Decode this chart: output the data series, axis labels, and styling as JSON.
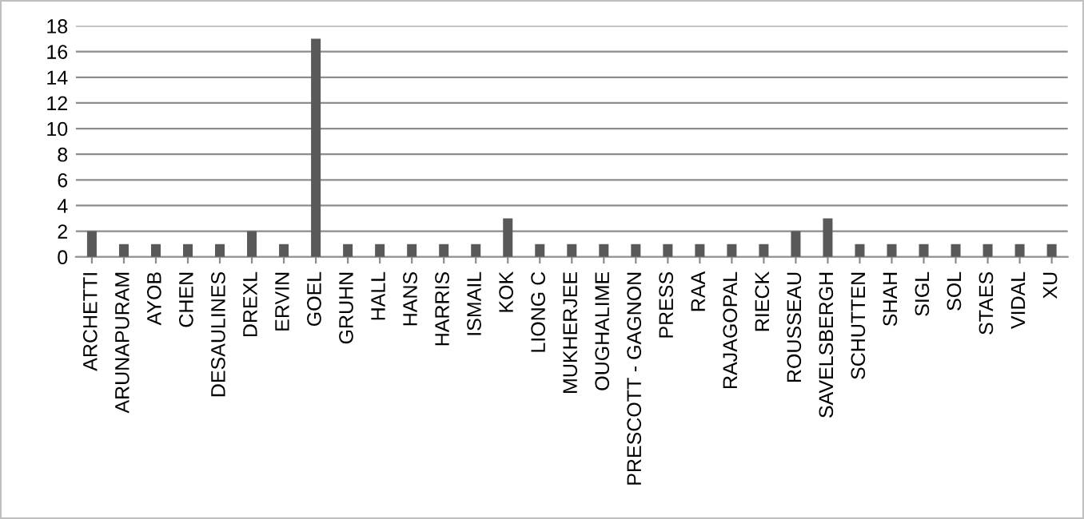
{
  "chart_data": {
    "type": "bar",
    "categories": [
      "ARCHETTI",
      "ARUNAPURAM",
      "AYOB",
      "CHEN",
      "DESAULINES",
      "DREXL",
      "ERVIN",
      "GOEL",
      "GRUHN",
      "HALL",
      "HANS",
      "HARRIS",
      "ISMAIL",
      "KOK",
      "LIONG C",
      "MUKHERJEE",
      "OUGHALIME",
      "PRESCOTT - GAGNON",
      "PRESS",
      "RAA",
      "RAJAGOPAL",
      "RIECK",
      "ROUSSEAU",
      "SAVELSBERGH",
      "SCHUTTEN",
      "SHAH",
      "SIGL",
      "SOL",
      "STAES",
      "VIDAL",
      "XU"
    ],
    "values": [
      2,
      1,
      1,
      1,
      1,
      2,
      1,
      17,
      1,
      1,
      1,
      1,
      1,
      3,
      1,
      1,
      1,
      1,
      1,
      1,
      1,
      1,
      2,
      3,
      1,
      1,
      1,
      1,
      1,
      1,
      1
    ],
    "color": "#595959",
    "ylim": [
      0,
      18
    ],
    "yticks": [
      0,
      2,
      4,
      6,
      8,
      10,
      12,
      14,
      16,
      18
    ],
    "grid": "y"
  }
}
